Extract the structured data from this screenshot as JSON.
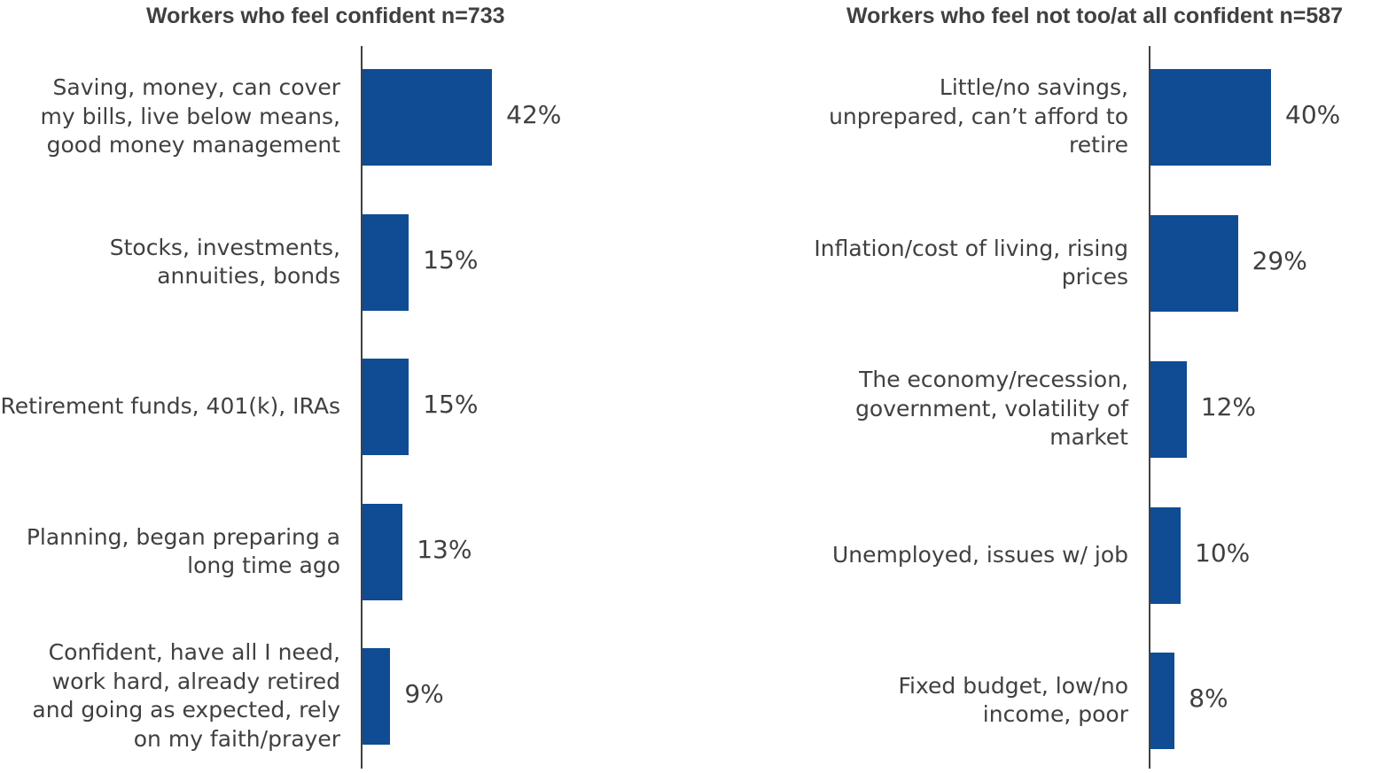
{
  "chart_data": [
    {
      "type": "bar",
      "orientation": "horizontal",
      "title": "Workers who feel confident n=733",
      "categories": [
        "Saving, money, can cover\nmy bills, live below means,\ngood money management",
        "Stocks, investments,\nannuities, bonds",
        "Retirement funds, 401(k), IRAs",
        "Planning, began preparing a\nlong time ago",
        "Confident, have all I need,\nwork hard, already retired\nand going as expected, rely\non my faith/prayer"
      ],
      "values": [
        42,
        15,
        15,
        13,
        9
      ],
      "value_labels": [
        "42%",
        "15%",
        "15%",
        "13%",
        "9%"
      ],
      "xlim": [
        0,
        100
      ],
      "color": "#0f4c94"
    },
    {
      "type": "bar",
      "orientation": "horizontal",
      "title": "Workers who feel not too/at all confident n=587",
      "categories": [
        "Little/no savings,\nunprepared, can’t afford to\nretire",
        "Inflation/cost of living, rising\nprices",
        "The economy/recession,\ngovernment, volatility of\nmarket",
        "Unemployed, issues w/ job",
        "Fixed budget, low/no\nincome, poor"
      ],
      "values": [
        40,
        29,
        12,
        10,
        8
      ],
      "value_labels": [
        "40%",
        "29%",
        "12%",
        "10%",
        "8%"
      ],
      "xlim": [
        0,
        100
      ],
      "color": "#0f4c94"
    }
  ]
}
